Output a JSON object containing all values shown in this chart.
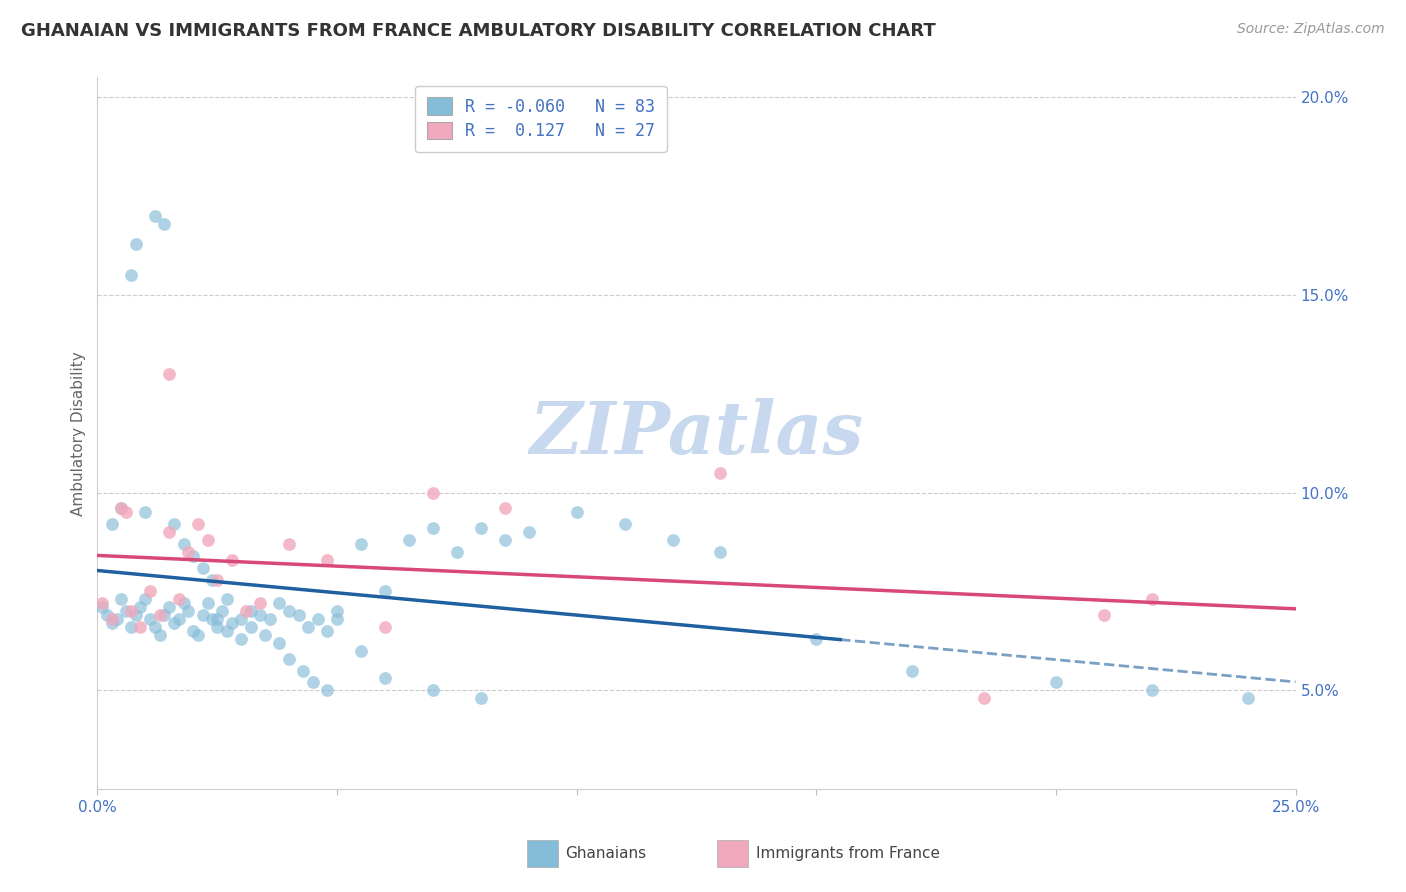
{
  "title": "GHANAIAN VS IMMIGRANTS FROM FRANCE AMBULATORY DISABILITY CORRELATION CHART",
  "source": "Source: ZipAtlas.com",
  "ylabel": "Ambulatory Disability",
  "xlim": [
    0.0,
    0.25
  ],
  "ylim": [
    0.025,
    0.205
  ],
  "xticks": [
    0.0,
    0.05,
    0.1,
    0.15,
    0.2,
    0.25
  ],
  "xtick_labels": [
    "0.0%",
    "",
    "",
    "",
    "",
    "25.0%"
  ],
  "yticks": [
    0.05,
    0.1,
    0.15,
    0.2
  ],
  "ytick_labels": [
    "5.0%",
    "10.0%",
    "15.0%",
    "20.0%"
  ],
  "R_gh": -0.06,
  "N_gh": 83,
  "R_fr": 0.127,
  "N_fr": 27,
  "color_blue": "#85bcd8",
  "color_pink": "#f0a8bc",
  "color_blue_line": "#2060a0",
  "color_pink_line": "#d84878",
  "color_axis_text": "#4472C4",
  "ghanaian_x": [
    0.001,
    0.002,
    0.003,
    0.004,
    0.005,
    0.006,
    0.007,
    0.008,
    0.009,
    0.01,
    0.011,
    0.012,
    0.013,
    0.014,
    0.015,
    0.016,
    0.017,
    0.018,
    0.019,
    0.02,
    0.021,
    0.022,
    0.023,
    0.024,
    0.025,
    0.026,
    0.027,
    0.028,
    0.03,
    0.032,
    0.034,
    0.036,
    0.038,
    0.04,
    0.042,
    0.044,
    0.046,
    0.048,
    0.05,
    0.055,
    0.06,
    0.065,
    0.07,
    0.075,
    0.08,
    0.085,
    0.09,
    0.1,
    0.11,
    0.12,
    0.13,
    0.15,
    0.17,
    0.2,
    0.22,
    0.24,
    0.003,
    0.005,
    0.007,
    0.008,
    0.01,
    0.012,
    0.014,
    0.016,
    0.018,
    0.02,
    0.022,
    0.024,
    0.025,
    0.027,
    0.03,
    0.032,
    0.035,
    0.038,
    0.04,
    0.043,
    0.045,
    0.048,
    0.05,
    0.055,
    0.06,
    0.07,
    0.08
  ],
  "ghanaian_y": [
    0.071,
    0.069,
    0.067,
    0.068,
    0.073,
    0.07,
    0.066,
    0.069,
    0.071,
    0.073,
    0.068,
    0.066,
    0.064,
    0.069,
    0.071,
    0.067,
    0.068,
    0.072,
    0.07,
    0.065,
    0.064,
    0.069,
    0.072,
    0.068,
    0.066,
    0.07,
    0.073,
    0.067,
    0.068,
    0.07,
    0.069,
    0.068,
    0.072,
    0.07,
    0.069,
    0.066,
    0.068,
    0.065,
    0.07,
    0.087,
    0.075,
    0.088,
    0.091,
    0.085,
    0.091,
    0.088,
    0.09,
    0.095,
    0.092,
    0.088,
    0.085,
    0.063,
    0.055,
    0.052,
    0.05,
    0.048,
    0.092,
    0.096,
    0.155,
    0.163,
    0.095,
    0.17,
    0.168,
    0.092,
    0.087,
    0.084,
    0.081,
    0.078,
    0.068,
    0.065,
    0.063,
    0.066,
    0.064,
    0.062,
    0.058,
    0.055,
    0.052,
    0.05,
    0.068,
    0.06,
    0.053,
    0.05,
    0.048
  ],
  "france_x": [
    0.001,
    0.003,
    0.005,
    0.007,
    0.009,
    0.011,
    0.013,
    0.015,
    0.017,
    0.019,
    0.021,
    0.023,
    0.025,
    0.028,
    0.031,
    0.034,
    0.04,
    0.048,
    0.06,
    0.07,
    0.085,
    0.13,
    0.185,
    0.21,
    0.22,
    0.006,
    0.015
  ],
  "france_y": [
    0.072,
    0.068,
    0.096,
    0.07,
    0.066,
    0.075,
    0.069,
    0.09,
    0.073,
    0.085,
    0.092,
    0.088,
    0.078,
    0.083,
    0.07,
    0.072,
    0.087,
    0.083,
    0.066,
    0.1,
    0.096,
    0.105,
    0.048,
    0.069,
    0.073,
    0.095,
    0.13
  ]
}
